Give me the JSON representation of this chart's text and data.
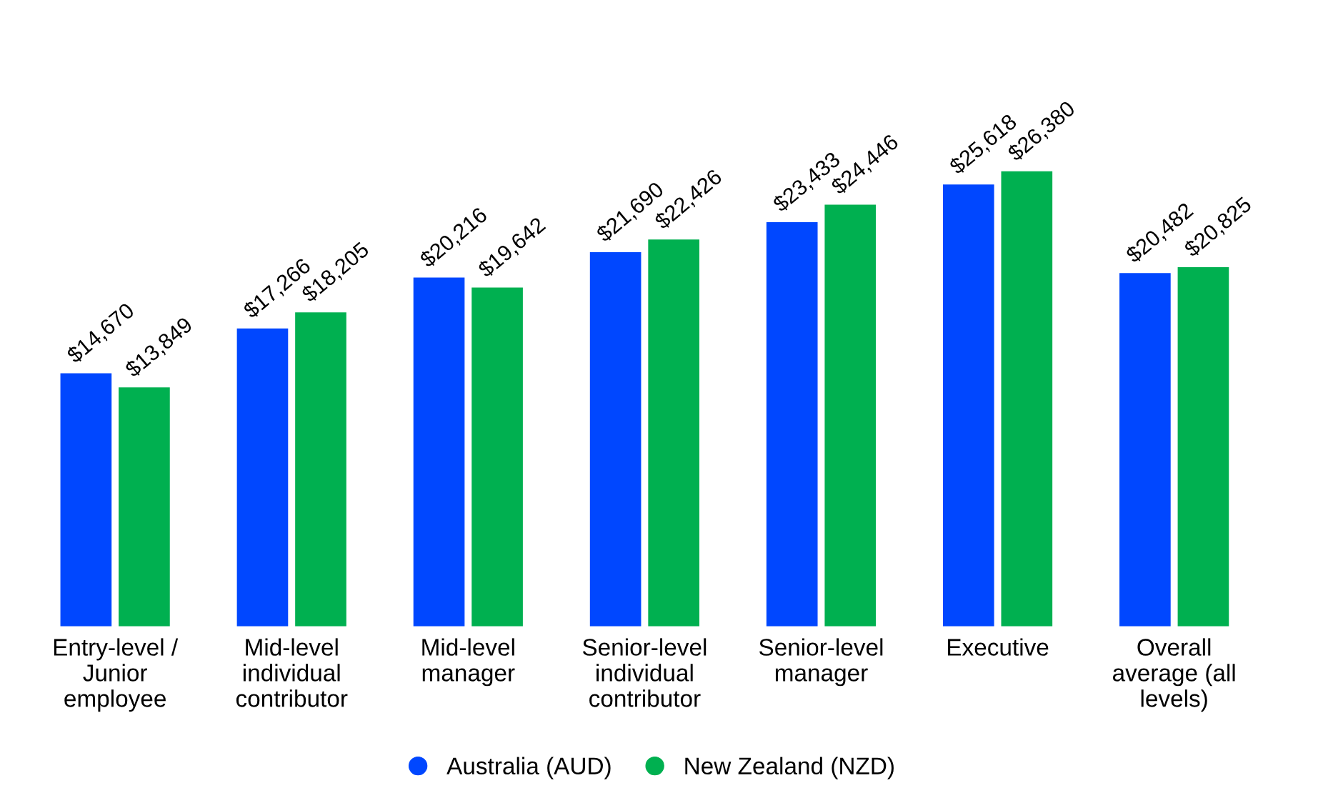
{
  "chart_data": {
    "type": "bar",
    "categories": [
      "Entry-level / Junior employee",
      "Mid-level individual contributor",
      "Mid-level manager",
      "Senior-level individual contributor",
      "Senior-level manager",
      "Executive",
      "Overall average (all levels)"
    ],
    "series": [
      {
        "name": "Australia (AUD)",
        "color": "#0047ff",
        "values": [
          14670,
          17266,
          20216,
          21690,
          23433,
          25618,
          20482
        ],
        "value_labels": [
          "$14,670",
          "$17,266",
          "$20,216",
          "$21,690",
          "$23,433",
          "$25,618",
          "$20,482"
        ]
      },
      {
        "name": "New Zealand (NZD)",
        "color": "#00b050",
        "values": [
          13849,
          18205,
          19642,
          22426,
          24446,
          26380,
          20825
        ],
        "value_labels": [
          "$13,849",
          "$18,205",
          "$19,642",
          "$22,426",
          "$24,446",
          "$26,380",
          "$20,825"
        ]
      }
    ],
    "legend": "bottom",
    "grid": false
  }
}
